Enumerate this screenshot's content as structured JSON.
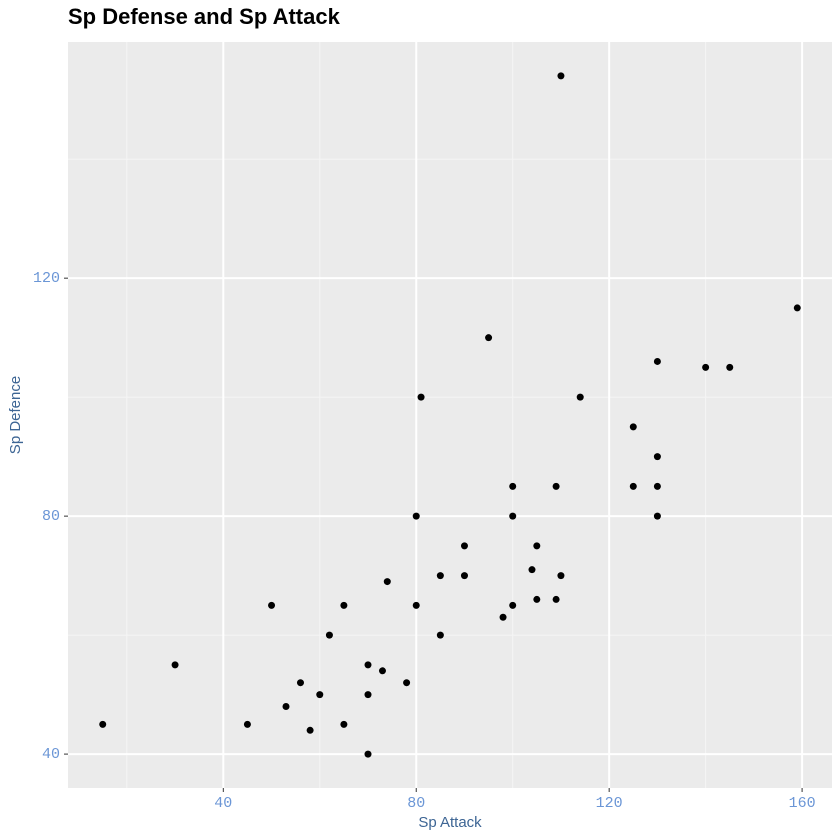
{
  "chart_data": {
    "type": "scatter",
    "title": "Sp Defense and Sp Attack",
    "x_label": "Sp Attack",
    "y_label": "Sp Defence",
    "xlim": [
      7.8,
      166.2
    ],
    "ylim": [
      34.3,
      159.7
    ],
    "xticks": [
      40,
      80,
      120,
      160
    ],
    "yticks": [
      40,
      80,
      120
    ],
    "xminor": [
      20,
      60,
      100,
      140
    ],
    "yminor": [
      60,
      100,
      140
    ],
    "grid": true,
    "color": "#000000",
    "x": [
      15,
      30,
      110,
      159,
      95,
      130,
      140,
      145,
      81,
      114,
      125,
      130,
      100,
      109,
      125,
      130,
      80,
      100,
      130,
      90,
      105,
      104,
      85,
      90,
      110,
      74,
      50,
      65,
      80,
      100,
      105,
      109,
      98,
      62,
      85,
      70,
      73,
      56,
      78,
      60,
      70,
      53,
      45,
      65,
      58,
      70
    ],
    "values": [
      45,
      55,
      154,
      115,
      110,
      106,
      105,
      105,
      100,
      100,
      95,
      90,
      85,
      85,
      85,
      85,
      80,
      80,
      80,
      75,
      75,
      71,
      70,
      70,
      70,
      69,
      65,
      65,
      65,
      65,
      66,
      66,
      63,
      60,
      60,
      55,
      54,
      52,
      52,
      50,
      50,
      48,
      45,
      45,
      44,
      40
    ]
  }
}
